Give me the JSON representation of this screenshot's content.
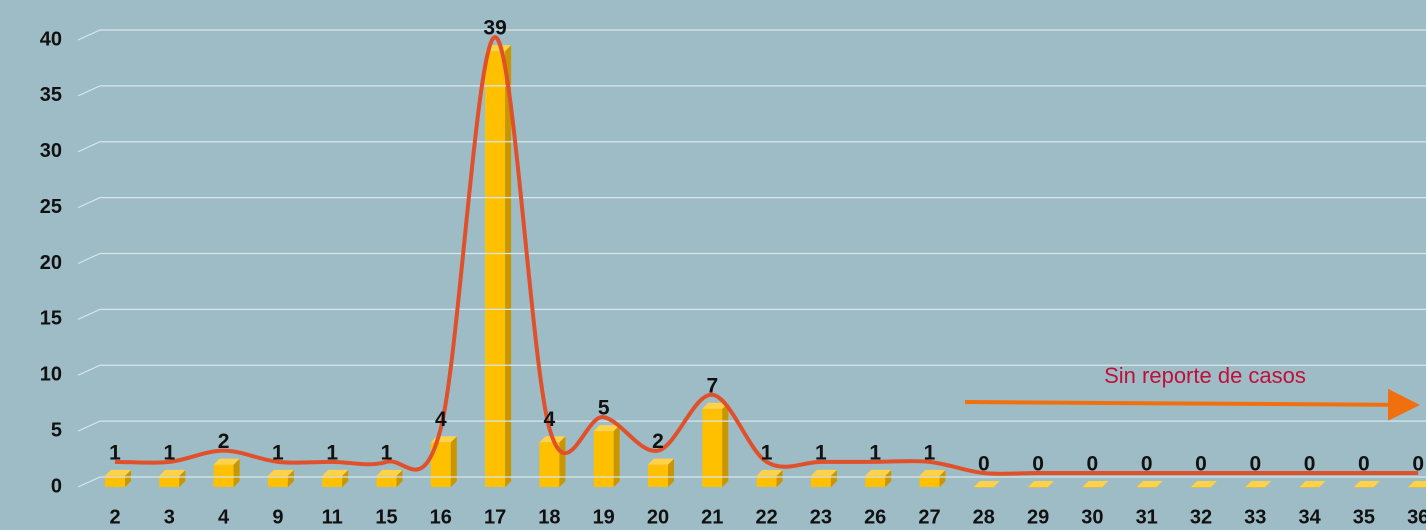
{
  "chart_data": {
    "type": "bar",
    "categories": [
      "2",
      "3",
      "4",
      "9",
      "11",
      "15",
      "16",
      "17",
      "18",
      "19",
      "20",
      "21",
      "22",
      "23",
      "26",
      "27",
      "28",
      "29",
      "30",
      "31",
      "32",
      "33",
      "34",
      "35",
      "36"
    ],
    "values": [
      1,
      1,
      2,
      1,
      1,
      1,
      4,
      39,
      4,
      5,
      2,
      7,
      1,
      1,
      1,
      1,
      0,
      0,
      0,
      0,
      0,
      0,
      0,
      0,
      0
    ],
    "color": "#ffc000",
    "line_color": "#e0502a",
    "ylim": [
      0,
      40
    ],
    "yticks": [
      0,
      5,
      10,
      15,
      20,
      25,
      30,
      35,
      40
    ],
    "grid": true,
    "annotation": "Sin reporte de casos"
  }
}
